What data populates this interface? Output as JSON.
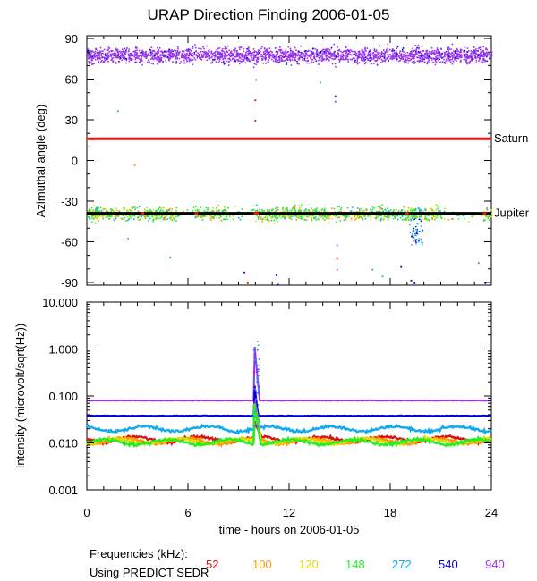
{
  "chart_data": {
    "title": "URAP Direction Finding  2006-01-05",
    "xlabel": "time - hours on 2006-01-05",
    "x_ticks": [
      "0",
      "6",
      "12",
      "18",
      "24"
    ],
    "xlim": [
      0,
      24
    ],
    "top_panel": {
      "type": "scatter",
      "ylabel": "Azimuthal angle (deg)",
      "ylim": [
        -92,
        92
      ],
      "y_ticks": [
        "90",
        "60",
        "30",
        "0",
        "-30",
        "-60",
        "-90"
      ],
      "reference_lines": [
        {
          "name": "Saturn",
          "value": 16,
          "color": "#ee1111"
        },
        {
          "name": "Jupiter",
          "value": -39,
          "color": "#000000"
        }
      ],
      "series": [
        {
          "name": "940 kHz cluster",
          "center": 78,
          "spread": 6,
          "color": "#9933ee"
        },
        {
          "name": "low-frequency cluster",
          "center": -39,
          "spread": 5
        }
      ]
    },
    "bottom_panel": {
      "type": "line",
      "yscale": "log",
      "ylabel": "Intensity (microvolt/sqrt(Hz))",
      "ylim": [
        0.001,
        10.0
      ],
      "y_ticks": [
        "10.000",
        "1.000",
        "0.100",
        "0.010",
        "0.001"
      ],
      "burst": {
        "start_hour": 9.9,
        "peak_hour": 9.95,
        "peak_value": 1.9
      },
      "series": [
        {
          "freq": "940",
          "color": "#9933ee",
          "level": 0.08
        },
        {
          "freq": "540",
          "color": "#0000dd",
          "level": 0.038
        },
        {
          "freq": "272",
          "color": "#11aaee",
          "level": 0.02
        },
        {
          "freq": "52",
          "color": "#dd1111",
          "level": 0.012
        },
        {
          "freq": "100",
          "color": "#ff9900",
          "level": 0.011
        },
        {
          "freq": "120",
          "color": "#dddd00",
          "level": 0.011
        },
        {
          "freq": "148",
          "color": "#22ee22",
          "level": 0.0105
        }
      ]
    },
    "legend": {
      "label": "Frequencies (kHz):",
      "items": [
        {
          "text": "52",
          "color": "#dd1111"
        },
        {
          "text": "100",
          "color": "#ff9900"
        },
        {
          "text": "120",
          "color": "#dddd00"
        },
        {
          "text": "148",
          "color": "#22ee22"
        },
        {
          "text": "272",
          "color": "#11aaee"
        },
        {
          "text": "540",
          "color": "#0000dd"
        },
        {
          "text": "940",
          "color": "#9933ee"
        }
      ]
    },
    "footnote": "Using PREDICT SEDR"
  }
}
